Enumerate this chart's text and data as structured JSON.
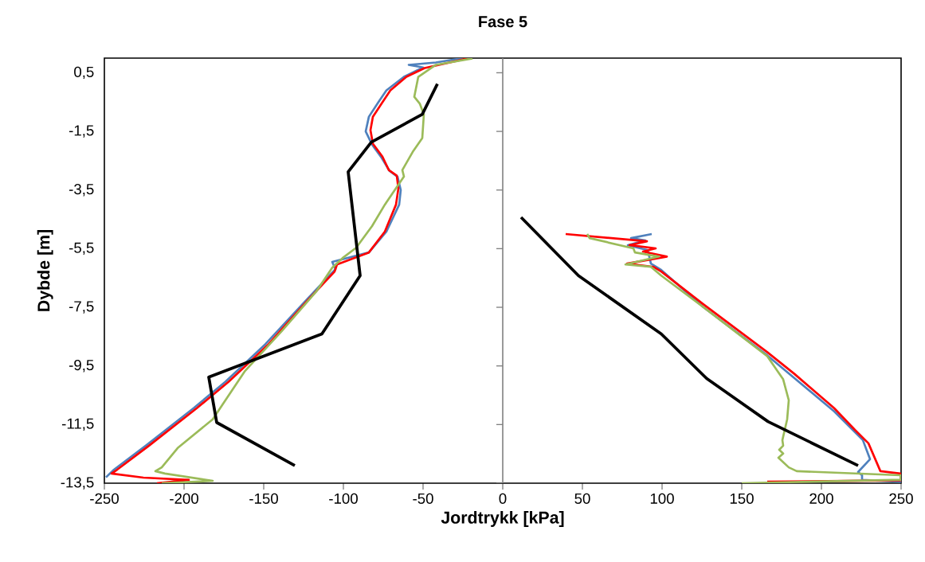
{
  "chart_data": {
    "type": "line",
    "title": "Fase 5",
    "xlabel": "Jordtrykk [kPa]",
    "ylabel": "Dybde [m]",
    "xlim": [
      -250,
      250
    ],
    "ylim": [
      -13.5,
      1
    ],
    "xticks": [
      -250,
      -200,
      -150,
      -100,
      -50,
      0,
      50,
      100,
      150,
      200,
      250
    ],
    "yticks": [
      {
        "value": 0.5,
        "label": "0,5"
      },
      {
        "value": -1.5,
        "label": "-1,5"
      },
      {
        "value": -3.5,
        "label": "-3,5"
      },
      {
        "value": -5.5,
        "label": "-5,5"
      },
      {
        "value": -7.5,
        "label": "-7,5"
      },
      {
        "value": -9.5,
        "label": "-9,5"
      },
      {
        "value": -11.5,
        "label": "-11,5"
      },
      {
        "value": -13.5,
        "label": "-13,5"
      }
    ],
    "series": [
      {
        "color": "#4f81bd",
        "x": [
          -25,
          -42,
          -59,
          -50,
          -62,
          -73,
          -78,
          -84,
          -86,
          -82,
          -76,
          -71,
          -66,
          -64,
          -65,
          -73,
          -84,
          -107,
          -105,
          -123,
          -149,
          -174,
          -194,
          -224,
          -244,
          -249
        ],
        "values": [
          1.0,
          0.85,
          0.77,
          0.68,
          0.36,
          -0.1,
          -0.5,
          -1.0,
          -1.5,
          -1.95,
          -2.4,
          -2.85,
          -3.05,
          -3.5,
          -4.0,
          -4.92,
          -5.63,
          -5.95,
          -6.2,
          -7.24,
          -8.76,
          -10.04,
          -10.94,
          -12.22,
          -13.04,
          -13.3
        ]
      },
      {
        "color": "#ff0000",
        "x": [
          -22,
          -49,
          -60.5,
          -70.5,
          -75.5,
          -81.5,
          -83,
          -81.5,
          -75.5,
          -71.5,
          -66.5,
          -65.5,
          -67,
          -74,
          -84,
          -104,
          -105.5,
          -122,
          -147,
          -172,
          -192,
          -222,
          -242,
          -245.5,
          -225.5,
          -197,
          -217
        ],
        "values": [
          0.99,
          0.66,
          0.36,
          -0.1,
          -0.51,
          -1.0,
          -1.46,
          -1.92,
          -2.36,
          -2.82,
          -3.01,
          -3.45,
          -4.0,
          -4.92,
          -5.63,
          -6.04,
          -6.28,
          -7.24,
          -8.76,
          -10.04,
          -10.94,
          -12.22,
          -13.04,
          -13.17,
          -13.31,
          -13.39,
          -13.5
        ]
      },
      {
        "color": "#9bbb59",
        "x": [
          -19,
          -42,
          -53,
          -54,
          -55.5,
          -52,
          -49.5,
          -50.5,
          -56.5,
          -63,
          -62,
          -74,
          -82,
          -92,
          -100.5,
          -107,
          -117,
          -139,
          -162,
          -182,
          -204,
          -214,
          -218,
          -212,
          -182,
          -214
        ],
        "values": [
          0.99,
          0.77,
          0.36,
          0.09,
          -0.32,
          -0.56,
          -0.92,
          -1.73,
          -2.2,
          -2.82,
          -3.04,
          -4.0,
          -4.73,
          -5.47,
          -5.82,
          -6.15,
          -6.96,
          -8.33,
          -9.69,
          -11.32,
          -12.3,
          -12.96,
          -13.09,
          -13.17,
          -13.42,
          -13.5
        ]
      },
      {
        "color": "#000000",
        "x": [
          -41,
          -50.5,
          -82.5,
          -97,
          -89.5,
          -113.5,
          -184.5,
          -179.5,
          -130.5
        ],
        "values": [
          0.12,
          -0.92,
          -1.87,
          -2.88,
          -6.42,
          -8.41,
          -9.88,
          -11.43,
          -12.9
        ]
      },
      {
        "color": "#4f81bd",
        "x": [
          93.5,
          80.5,
          89.5,
          78.5,
          91,
          93,
          99.5,
          126,
          166,
          208,
          226,
          230.5,
          223,
          225.5,
          225.5,
          250
        ],
        "values": [
          -5.0,
          -5.14,
          -5.22,
          -5.38,
          -5.55,
          -6.01,
          -6.23,
          -7.5,
          -9.14,
          -11.05,
          -12.03,
          -12.68,
          -13.12,
          -13.23,
          -13.39,
          -13.45
        ]
      },
      {
        "color": "#ff0000",
        "x": [
          39.5,
          90.5,
          79.5,
          96,
          88,
          103,
          78,
          94.5,
          99.5,
          126,
          166,
          183,
          208,
          221,
          229.5,
          234.5,
          237,
          249.5,
          250,
          166
        ],
        "values": [
          -5.0,
          -5.25,
          -5.38,
          -5.49,
          -5.6,
          -5.77,
          -6.01,
          -6.12,
          -6.28,
          -7.4,
          -9.03,
          -9.77,
          -10.94,
          -11.68,
          -12.14,
          -12.77,
          -13.09,
          -13.17,
          -13.4,
          -13.45
        ]
      },
      {
        "color": "#9bbb59",
        "x": [
          53,
          54.5,
          82,
          83,
          98,
          77,
          93,
          99.5,
          126,
          166,
          176,
          179.5,
          178.5,
          175.5,
          176,
          173.5,
          176,
          173,
          179.5,
          184.5,
          249.5,
          250,
          150
        ],
        "values": [
          -5.0,
          -5.14,
          -5.49,
          -5.63,
          -5.77,
          -6.04,
          -6.12,
          -6.42,
          -7.5,
          -9.17,
          -9.96,
          -10.67,
          -11.32,
          -12.03,
          -12.22,
          -12.36,
          -12.49,
          -12.63,
          -12.96,
          -13.09,
          -13.23,
          -13.38,
          -13.5
        ]
      },
      {
        "color": "#000000",
        "x": [
          11.5,
          47.5,
          99.5,
          128,
          166.5,
          223
        ],
        "values": [
          -4.43,
          -6.42,
          -8.41,
          -9.93,
          -11.4,
          -12.9
        ]
      }
    ]
  }
}
